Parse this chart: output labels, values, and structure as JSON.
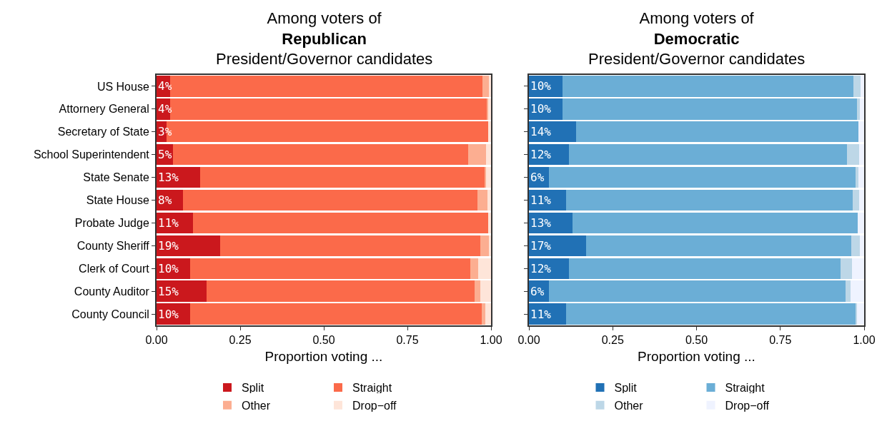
{
  "chart_data": [
    {
      "type": "bar",
      "orientation": "horizontal",
      "stacked": true,
      "title": "Among voters of\nRepublican\nPresident/Governor candidates",
      "xlabel": "Proportion voting ...",
      "categories": [
        "US House",
        "Attornery General",
        "Secretary of State",
        "School Superintendent",
        "State Senate",
        "State House",
        "Probate Judge",
        "County Sheriff",
        "Clerk of Court",
        "County Auditor",
        "County Council"
      ],
      "series": [
        {
          "name": "Split",
          "color": "#cb181d",
          "values": [
            0.04,
            0.04,
            0.03,
            0.05,
            0.13,
            0.08,
            0.11,
            0.19,
            0.1,
            0.15,
            0.1
          ],
          "value_labels": [
            "4%",
            "4%",
            "3%",
            "5%",
            "13%",
            "8%",
            "11%",
            "19%",
            "10%",
            "15%",
            "10%"
          ]
        },
        {
          "name": "Straight",
          "color": "#fb6a4a",
          "values": [
            0.934,
            0.947,
            0.961,
            0.882,
            0.851,
            0.879,
            0.881,
            0.778,
            0.838,
            0.801,
            0.872
          ]
        },
        {
          "name": "Other",
          "color": "#fcae91",
          "values": [
            0.02,
            0.004,
            0,
            0.053,
            0.004,
            0.03,
            0,
            0.026,
            0.024,
            0.017,
            0.011
          ]
        },
        {
          "name": "Drop−off",
          "color": "#fee5d9",
          "values": [
            0.006,
            0.009,
            0.009,
            0.015,
            0.015,
            0.011,
            0.009,
            0.006,
            0.038,
            0.032,
            0.017
          ]
        }
      ],
      "xlim": [
        0,
        1
      ],
      "xticks": [
        {
          "value": 0,
          "label": "0.00"
        },
        {
          "value": 0.25,
          "label": "0.25"
        },
        {
          "value": 0.5,
          "label": "0.50"
        },
        {
          "value": 0.75,
          "label": "0.75"
        },
        {
          "value": 1,
          "label": "1.00"
        }
      ],
      "grid": false,
      "legend": "bottom"
    },
    {
      "type": "bar",
      "orientation": "horizontal",
      "stacked": true,
      "title": "Among voters of\nDemocratic\nPresident/Governor candidates",
      "xlabel": "Proportion voting ...",
      "categories": [
        null,
        null,
        null,
        null,
        null,
        null,
        null,
        null,
        null,
        null,
        null
      ],
      "series": [
        {
          "name": "Split",
          "color": "#2171b5",
          "values": [
            0.1,
            0.1,
            0.14,
            0.12,
            0.06,
            0.11,
            0.13,
            0.17,
            0.12,
            0.06,
            0.11
          ],
          "value_labels": [
            "10%",
            "10%",
            "14%",
            "12%",
            "6%",
            "11%",
            "13%",
            "17%",
            "12%",
            "6%",
            "11%"
          ]
        },
        {
          "name": "Straight",
          "color": "#6baed6",
          "values": [
            0.868,
            0.879,
            0.843,
            0.829,
            0.914,
            0.856,
            0.851,
            0.792,
            0.81,
            0.885,
            0.864
          ]
        },
        {
          "name": "Other",
          "color": "#bdd7e7",
          "values": [
            0.021,
            0.008,
            0,
            0.036,
            0.009,
            0.019,
            0,
            0.025,
            0.034,
            0.014,
            0.005
          ]
        },
        {
          "name": "Drop−off",
          "color": "#eff3ff",
          "values": [
            0.011,
            0.013,
            0.016,
            0.015,
            0.017,
            0.015,
            0.019,
            0.013,
            0.036,
            0.041,
            0.021
          ]
        }
      ],
      "xlim": [
        0,
        1
      ],
      "xticks": [
        {
          "value": 0,
          "label": "0.00"
        },
        {
          "value": 0.25,
          "label": "0.25"
        },
        {
          "value": 0.5,
          "label": "0.50"
        },
        {
          "value": 0.75,
          "label": "0.75"
        },
        {
          "value": 1,
          "label": "1.00"
        }
      ],
      "grid": false,
      "legend": "bottom"
    }
  ]
}
